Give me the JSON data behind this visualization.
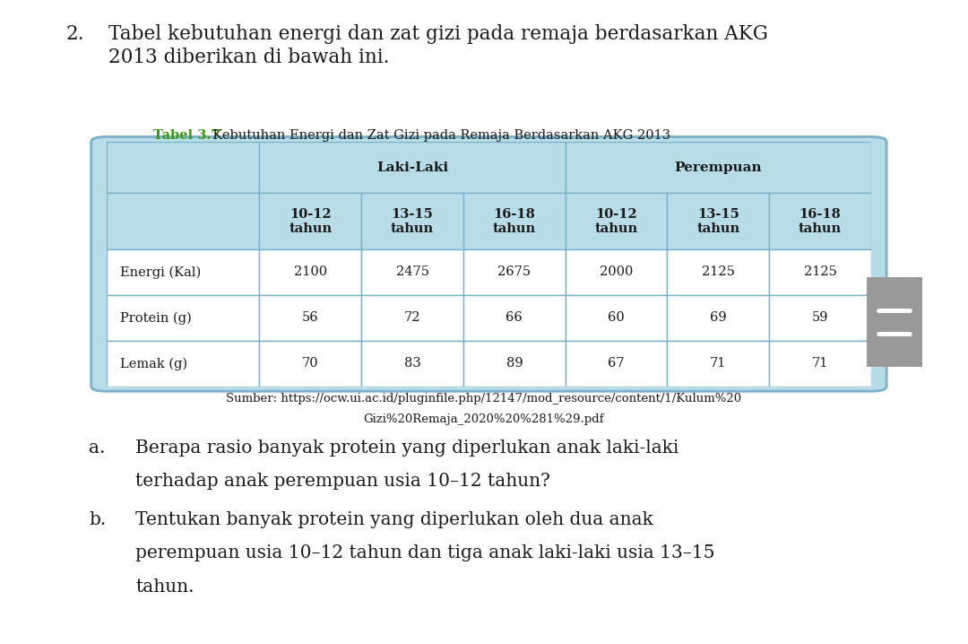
{
  "title_number": "2.",
  "title_text": "Tabel kebutuhan energi dan zat gizi pada remaja berdasarkan AKG\n2013 diberikan di bawah ini.",
  "table_label_bold": "Tabel 3.7",
  "table_label_rest": "  Kebutuhan Energi dan Zat Gizi pada Remaja Berdasarkan AKG 2013",
  "col_groups": [
    "Laki-Laki",
    "Perempuan"
  ],
  "col_subheaders": [
    "10-12\ntahun",
    "13-15\ntahun",
    "16-18\ntahun",
    "10-12\ntahun",
    "13-15\ntahun",
    "16-18\ntahun"
  ],
  "row_labels": [
    "Energi (Kal)",
    "Protein (g)",
    "Lemak (g)"
  ],
  "table_data": [
    [
      2100,
      2475,
      2675,
      2000,
      2125,
      2125
    ],
    [
      56,
      72,
      66,
      60,
      69,
      59
    ],
    [
      70,
      83,
      89,
      67,
      71,
      71
    ]
  ],
  "source_line1": "Sumber: https://ocw.ui.ac.id/pluginfile.php/12147/mod_resource/content/1/Kulum%20",
  "source_line2": "Gizi%20Remaja_2020%20%281%29.pdf",
  "qa_label": "a.",
  "qa_text_line1": "Berapa rasio banyak protein yang diperlukan anak laki-laki",
  "qa_text_line2": "terhadap anak perempuan usia 10–12 tahun?",
  "qb_label": "b.",
  "qb_text_line1": "Tentukan banyak protein yang diperlukan oleh dua anak",
  "qb_text_line2": "perempuan usia 10–12 tahun dan tiga anak laki-laki usia 13–15",
  "qb_text_line3": "tahun.",
  "header_bg": "#b8dce8",
  "table_border_color": "#7ab0c8",
  "data_bg": "#ffffff",
  "text_color": "#1a1a1a",
  "tabel_label_color": "#3a9a00",
  "gray_btn_color": "#999999",
  "title_fontsize": 15.5,
  "table_label_fontsize": 10.5,
  "source_fontsize": 9.5,
  "question_fontsize": 14.5,
  "header_fontsize": 11,
  "subheader_fontsize": 10.5,
  "data_fontsize": 10.5,
  "row_label_fontsize": 10.5,
  "bg_color": "#ffffff"
}
